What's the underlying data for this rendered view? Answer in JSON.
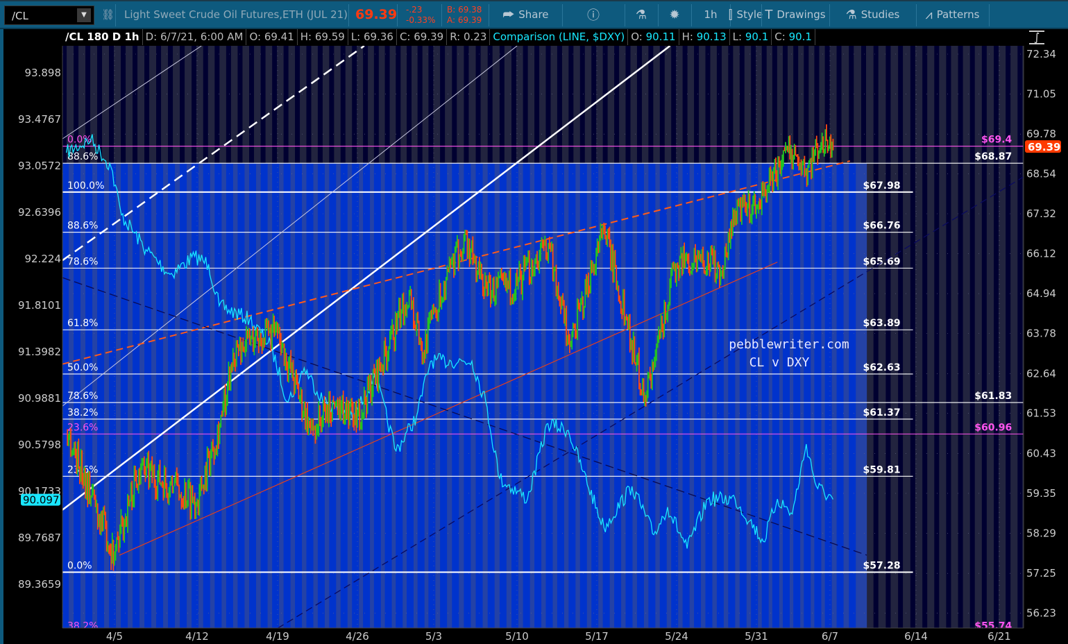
{
  "toolbar": {
    "symbol": "/CL",
    "description": "Light Sweet Crude Oil Futures,ETH (JUL 21)",
    "last": "69.39",
    "change": "-.23",
    "change_pct": "-0.33%",
    "bid": "B: 69.38",
    "ask": "A: 69.39",
    "buttons": [
      {
        "label": "Share",
        "icon": "share-icon"
      },
      {
        "label": "",
        "icon": "info-icon"
      },
      {
        "label": "",
        "icon": "flask-icon"
      },
      {
        "label": "",
        "icon": "gear-icon"
      },
      {
        "label": "1h",
        "icon": ""
      },
      {
        "label": "Style",
        "icon": "candle-icon"
      },
      {
        "label": "Drawings",
        "icon": "text-t-icon"
      },
      {
        "label": "Studies",
        "icon": "flask-icon"
      },
      {
        "label": "Patterns",
        "icon": "patterns-icon"
      }
    ]
  },
  "header": {
    "title": "/CL 180 D 1h",
    "date": "D: 6/7/21, 6:00 AM",
    "open": "O: 69.41",
    "high": "H: 69.59",
    "low": "L: 69.36",
    "close": "C: 69.39",
    "range": "R: 0.23",
    "comparison": "Comparison (LINE, $DXY)",
    "cmp_open_l": "O:",
    "cmp_open": "90.11",
    "cmp_high_l": "H:",
    "cmp_high": "90.13",
    "cmp_low_l": "L:",
    "cmp_low": "90.1",
    "cmp_close_l": "C:",
    "cmp_close": "90.1"
  },
  "colors": {
    "up": "#22c422",
    "down": "#ff4a10",
    "dxy": "#19e6ff",
    "fib_white": "#ffffff",
    "fib_magenta": "#ff55ee",
    "fill_blue": "#2442a6",
    "session_blue": "#0033cc",
    "bg_dark": "#22243f",
    "session_dark": "#000030",
    "price_tag": "#ff3a00"
  },
  "chart_data": {
    "type": "candlestick+line",
    "right_axis": {
      "scale": "log",
      "ticks": [
        "72.34",
        "71.05",
        "69.78",
        "68.54",
        "67.32",
        "66.12",
        "64.94",
        "63.78",
        "62.64",
        "61.53",
        "60.43",
        "59.35",
        "58.29",
        "57.25",
        "56.23"
      ],
      "last_tag": "69.39"
    },
    "left_axis": {
      "scale": "log",
      "ticks": [
        "93.898",
        "93.4767",
        "93.0572",
        "92.6396",
        "92.224",
        "91.8101",
        "91.3982",
        "90.9881",
        "90.5798",
        "90.1733",
        "89.7687",
        "89.3659"
      ],
      "last_tag": "90.097"
    },
    "x_ticks": [
      "4/5",
      "4/12",
      "4/19",
      "4/26",
      "5/3",
      "5/10",
      "5/17",
      "5/24",
      "5/31",
      "6/7",
      "6/14",
      "6/21"
    ],
    "cl_series": [
      [
        "2021-03-31T22",
        61.06
      ],
      [
        "2021-04-05T00",
        57.72
      ],
      [
        "2021-04-07T01",
        60.0
      ],
      [
        "2021-04-10T00",
        59.55
      ],
      [
        "2021-04-12T00",
        59.18
      ],
      [
        "2021-04-14T04",
        61.45
      ],
      [
        "2021-04-15T03",
        63.2
      ],
      [
        "2021-04-16T14",
        63.6
      ],
      [
        "2021-04-19T00",
        63.8
      ],
      [
        "2021-04-21T22",
        61.06
      ],
      [
        "2021-04-24T00",
        61.82
      ],
      [
        "2021-04-26T00",
        61.45
      ],
      [
        "2021-04-28T21",
        63.4
      ],
      [
        "2021-04-30T18",
        65.0
      ],
      [
        "2021-05-02T01",
        63.2
      ],
      [
        "2021-05-03T00",
        64.4
      ],
      [
        "2021-05-05T13",
        66.55
      ],
      [
        "2021-05-07T12",
        65.0
      ],
      [
        "2021-05-10T00",
        65.21
      ],
      [
        "2021-05-12T18",
        66.44
      ],
      [
        "2021-05-14T15",
        63.4
      ],
      [
        "2021-05-17T15",
        66.86
      ],
      [
        "2021-05-19T17",
        64.0
      ],
      [
        "2021-05-21T05",
        62.01
      ],
      [
        "2021-05-22T01",
        63.0
      ],
      [
        "2021-05-24T00",
        65.82
      ],
      [
        "2021-05-26T03",
        66.03
      ],
      [
        "2021-05-27T23",
        65.62
      ],
      [
        "2021-05-29T03",
        67.38
      ],
      [
        "2021-05-31T00",
        67.49
      ],
      [
        "2021-06-01T08",
        68.34
      ],
      [
        "2021-06-03T07",
        69.31
      ],
      [
        "2021-06-04T14",
        68.55
      ],
      [
        "2021-06-06T06",
        69.63
      ],
      [
        "2021-06-07T06",
        69.39
      ]
    ],
    "dxy_series": [
      [
        "2021-03-31T22",
        93.17
      ],
      [
        "2021-04-03T00",
        93.29
      ],
      [
        "2021-04-04T17",
        93.04
      ],
      [
        "2021-04-05T14",
        92.61
      ],
      [
        "2021-04-07T16",
        92.3
      ],
      [
        "2021-04-09T17",
        92.08
      ],
      [
        "2021-04-11T19",
        92.24
      ],
      [
        "2021-04-13T00",
        92.17
      ],
      [
        "2021-04-13T22",
        91.8
      ],
      [
        "2021-04-16T14",
        91.68
      ],
      [
        "2021-04-18T10",
        91.44
      ],
      [
        "2021-04-19T22",
        90.95
      ],
      [
        "2021-04-21T08",
        91.25
      ],
      [
        "2021-04-23T02",
        90.95
      ],
      [
        "2021-04-25T17",
        90.82
      ],
      [
        "2021-04-27T14",
        91.19
      ],
      [
        "2021-04-29T13",
        90.52
      ],
      [
        "2021-05-01T10",
        90.82
      ],
      [
        "2021-05-02T17",
        91.31
      ],
      [
        "2021-05-04T11",
        91.31
      ],
      [
        "2021-05-06T05",
        91.31
      ],
      [
        "2021-05-07T09",
        90.95
      ],
      [
        "2021-05-08T13",
        90.28
      ],
      [
        "2021-05-10T22",
        90.1
      ],
      [
        "2021-05-12T17",
        90.76
      ],
      [
        "2021-05-14T12",
        90.7
      ],
      [
        "2021-05-15T19",
        90.34
      ],
      [
        "2021-05-17T15",
        89.85
      ],
      [
        "2021-05-20T02",
        90.21
      ],
      [
        "2021-05-22T00",
        89.79
      ],
      [
        "2021-05-23T05",
        90.03
      ],
      [
        "2021-05-24T22",
        89.67
      ],
      [
        "2021-05-26T18",
        90.1
      ],
      [
        "2021-05-29T03",
        90.1
      ],
      [
        "2021-05-30T10",
        89.91
      ],
      [
        "2021-05-31T16",
        89.73
      ],
      [
        "2021-06-02T00",
        90.1
      ],
      [
        "2021-06-03T10",
        89.97
      ],
      [
        "2021-06-04T18",
        90.58
      ],
      [
        "2021-06-05T17",
        90.21
      ],
      [
        "2021-06-07T06",
        90.097
      ]
    ],
    "fib_sets": [
      {
        "end": "2021-06-13T18",
        "levels": [
          {
            "pct": "100.0%",
            "price": 67.98,
            "label": "$67.98",
            "color": "white"
          },
          {
            "pct": "88.6%",
            "price": 66.76,
            "label": "$66.76",
            "color": "white"
          },
          {
            "pct": "78.6%",
            "price": 65.69,
            "label": "$65.69",
            "color": "white"
          },
          {
            "pct": "61.8%",
            "price": 63.89,
            "label": "$63.89",
            "color": "white"
          },
          {
            "pct": "50.0%",
            "price": 62.63,
            "label": "$62.63",
            "color": "white"
          },
          {
            "pct": "38.2%",
            "price": 61.37,
            "label": "$61.37",
            "color": "white"
          },
          {
            "pct": "23.6%",
            "price": 59.81,
            "label": "$59.81",
            "color": "white"
          },
          {
            "pct": "0.0%",
            "price": 57.28,
            "label": "$57.28",
            "color": "white"
          }
        ]
      },
      {
        "end": "2021-06-23T00",
        "levels": [
          {
            "pct": "0.0%",
            "price": 69.4,
            "label": "$69.4",
            "color": "magenta"
          },
          {
            "pct": "88.6%",
            "price": 68.87,
            "label": "$68.87",
            "color": "white"
          },
          {
            "pct": "78.6%",
            "price": 61.83,
            "label": "$61.83",
            "color": "white"
          },
          {
            "pct": "23.6%",
            "price": 60.96,
            "label": "$60.96",
            "color": "magenta"
          },
          {
            "pct": "38.2%",
            "price": 55.74,
            "label": "$55.74",
            "color": "magenta"
          }
        ]
      }
    ],
    "fill_zone": {
      "from": "2021-03-31T14",
      "to": "2021-06-10T00",
      "top": 68.87,
      "bottom": 55.0
    },
    "trendlines": [
      {
        "a": [
          "2021-03-31T14",
          69.63
        ],
        "b": [
          "2021-04-12T09",
          72.61
        ],
        "color": "#c8c8e0",
        "width": 1,
        "dash": ""
      },
      {
        "a": [
          "2021-03-31T14",
          65.92
        ],
        "b": [
          "2021-04-26T15",
          72.61
        ],
        "color": "#ffffff",
        "width": 2.5,
        "dash": "14,8"
      },
      {
        "a": [
          "2021-03-31T14",
          61.73
        ],
        "b": [
          "2021-05-10T00",
          72.61
        ],
        "color": "#c8c8e0",
        "width": 1,
        "dash": ""
      },
      {
        "a": [
          "2021-03-31T14",
          58.91
        ],
        "b": [
          "2021-05-23T10",
          72.61
        ],
        "color": "#ffffff",
        "width": 2.5,
        "dash": ""
      },
      {
        "a": [
          "2021-03-31T14",
          62.91
        ],
        "b": [
          "2021-06-08T15",
          68.94
        ],
        "color": "#ff5a1a",
        "width": 2,
        "dash": "10,6"
      },
      {
        "a": [
          "2021-04-05T10",
          57.72
        ],
        "b": [
          "2021-06-02T00",
          65.87
        ],
        "color": "#e04020",
        "width": 1.2,
        "dash": ""
      },
      {
        "a": [
          "2021-04-19T00",
          55.85
        ],
        "b": [
          "2021-06-23T00",
          68.44
        ],
        "color": "#0a0a60",
        "width": 1.3,
        "dash": "10,6"
      },
      {
        "a": [
          "2021-03-31T14",
          65.41
        ],
        "b": [
          "2021-06-10T00",
          57.72
        ],
        "color": "#0a0a50",
        "width": 1.3,
        "dash": "12,6"
      }
    ],
    "annotation": [
      "pebblewriter.com",
      "CL v DXY"
    ]
  }
}
